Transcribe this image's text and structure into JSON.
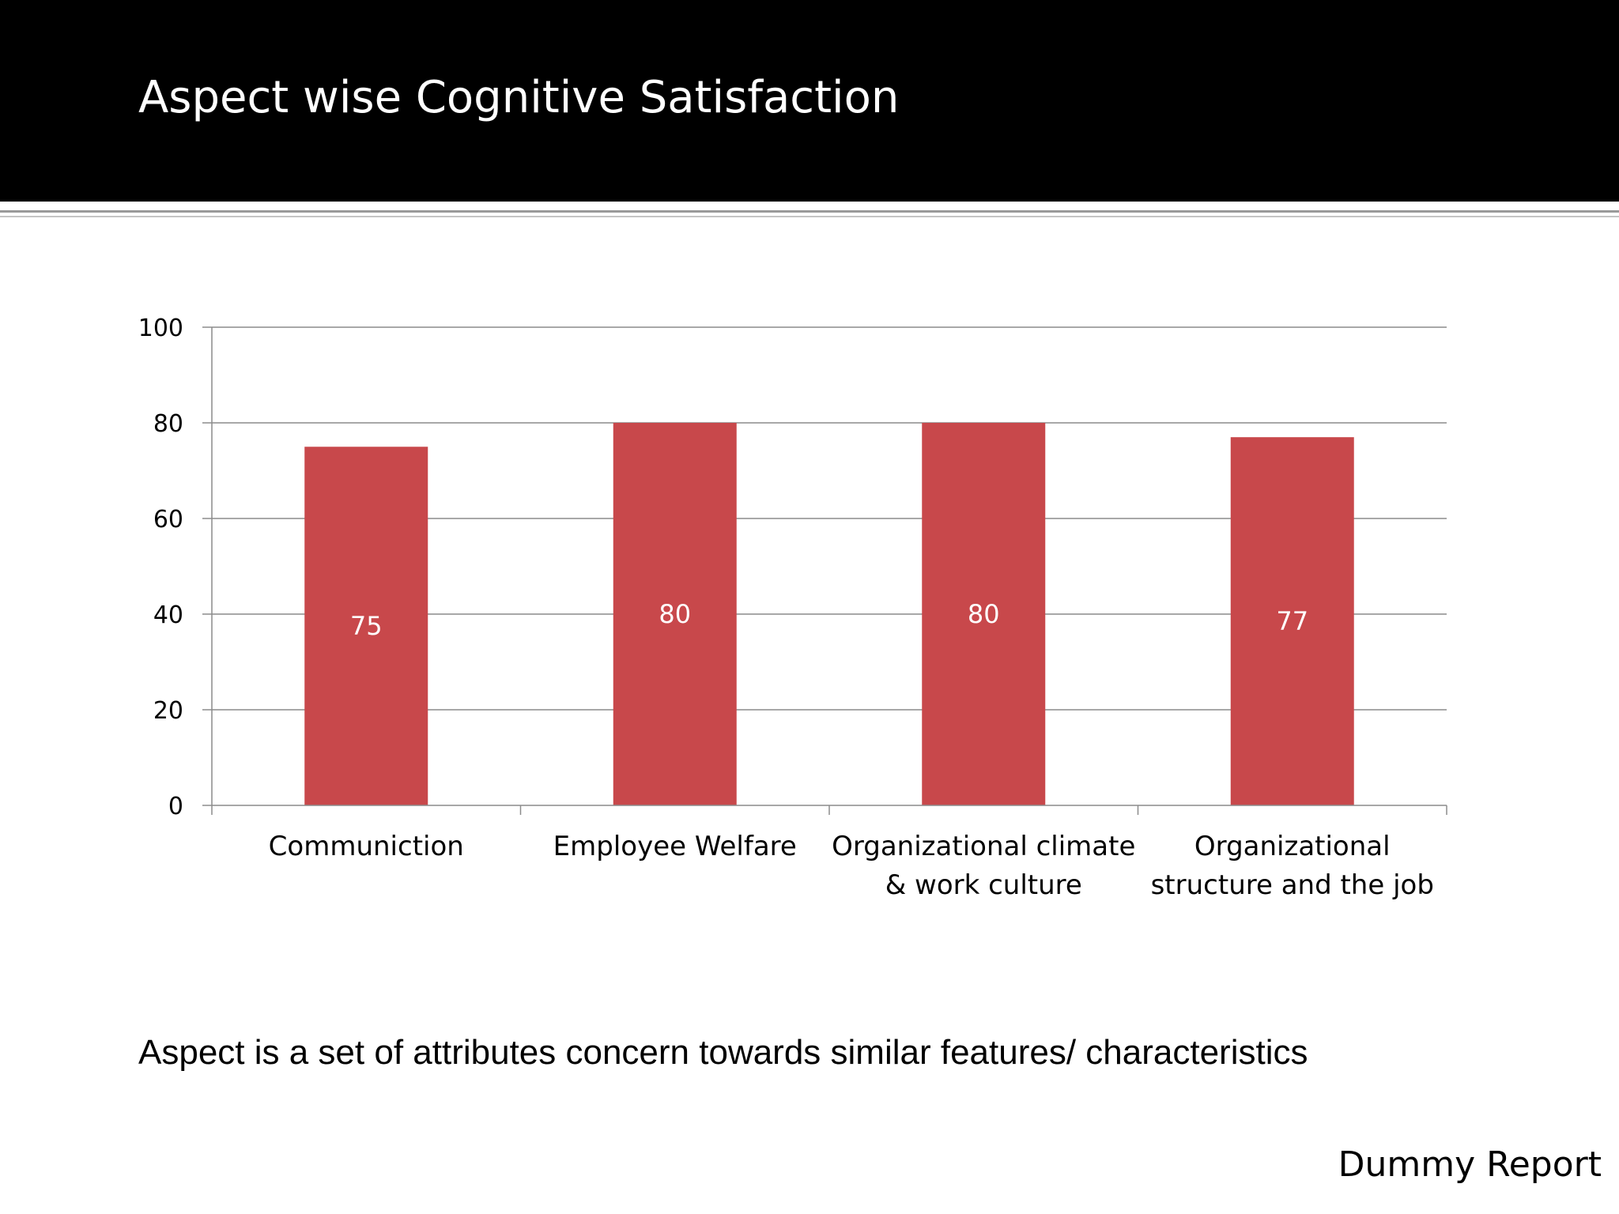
{
  "slide": {
    "title": "Aspect wise Cognitive Satisfaction",
    "caption": "Aspect is a set of attributes concern towards similar features/ characteristics",
    "footer": "Dummy Report"
  },
  "chart_data": {
    "type": "bar",
    "categories": [
      [
        "Communiction"
      ],
      [
        "Employee Welfare"
      ],
      [
        "Organizational climate",
        "& work culture"
      ],
      [
        "Organizational",
        "structure and the job"
      ]
    ],
    "values": [
      75,
      80,
      80,
      77
    ],
    "data_labels": [
      "75",
      "80",
      "80",
      "77"
    ],
    "ylim": [
      0,
      100
    ],
    "yticks": [
      0,
      20,
      40,
      60,
      80,
      100
    ],
    "grid": true,
    "legend": "none",
    "bar_color": "#c8484b",
    "label_color": "#ffffff",
    "grid_color": "#8c8c8c"
  }
}
